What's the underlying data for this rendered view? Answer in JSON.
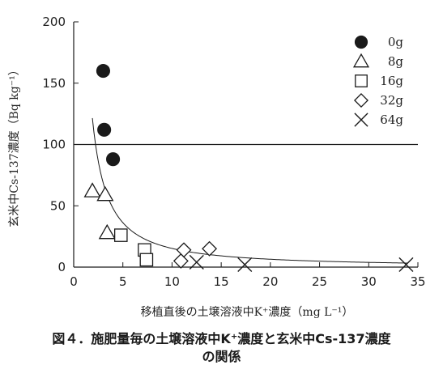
{
  "chart_data": {
    "type": "scatter",
    "xlabel": "移植直後の土壌溶液中K⁺濃度（mg L⁻¹）",
    "ylabel": "玄米中Cs-137濃度（Bq kg⁻¹）",
    "xlim": [
      0,
      35
    ],
    "ylim": [
      0,
      200
    ],
    "xticks": [
      "0",
      "5",
      "10",
      "15",
      "20",
      "25",
      "30",
      "35"
    ],
    "yticks": [
      "0",
      "50",
      "100",
      "150",
      "200"
    ],
    "legend_position": "top-right",
    "reference_line_y": 100,
    "series": [
      {
        "name": "0g",
        "marker": "filled-circle",
        "points": [
          [
            3.0,
            160
          ],
          [
            3.1,
            112
          ],
          [
            4.0,
            88
          ]
        ]
      },
      {
        "name": "8g",
        "marker": "triangle",
        "points": [
          [
            1.9,
            62
          ],
          [
            3.2,
            59
          ],
          [
            3.4,
            28
          ]
        ]
      },
      {
        "name": "16g",
        "marker": "square",
        "points": [
          [
            4.8,
            26
          ],
          [
            7.2,
            14
          ],
          [
            7.4,
            6
          ]
        ]
      },
      {
        "name": "32g",
        "marker": "diamond",
        "points": [
          [
            10.9,
            5
          ],
          [
            11.2,
            14
          ],
          [
            13.8,
            15
          ]
        ]
      },
      {
        "name": "64g",
        "marker": "x",
        "points": [
          [
            12.5,
            4
          ],
          [
            17.4,
            2
          ],
          [
            33.8,
            2
          ]
        ]
      }
    ],
    "fit_curve": {
      "type": "power",
      "a": 271,
      "b": -1.25,
      "x_start": 1.9,
      "x_end": 34
    }
  },
  "caption": {
    "line1": "図４．施肥量毎の土壌溶液中K⁺濃度と玄米中Cs-137濃度",
    "line2": "の関係"
  },
  "colors": {
    "ink": "#1a1a1a",
    "background": "#ffffff"
  }
}
